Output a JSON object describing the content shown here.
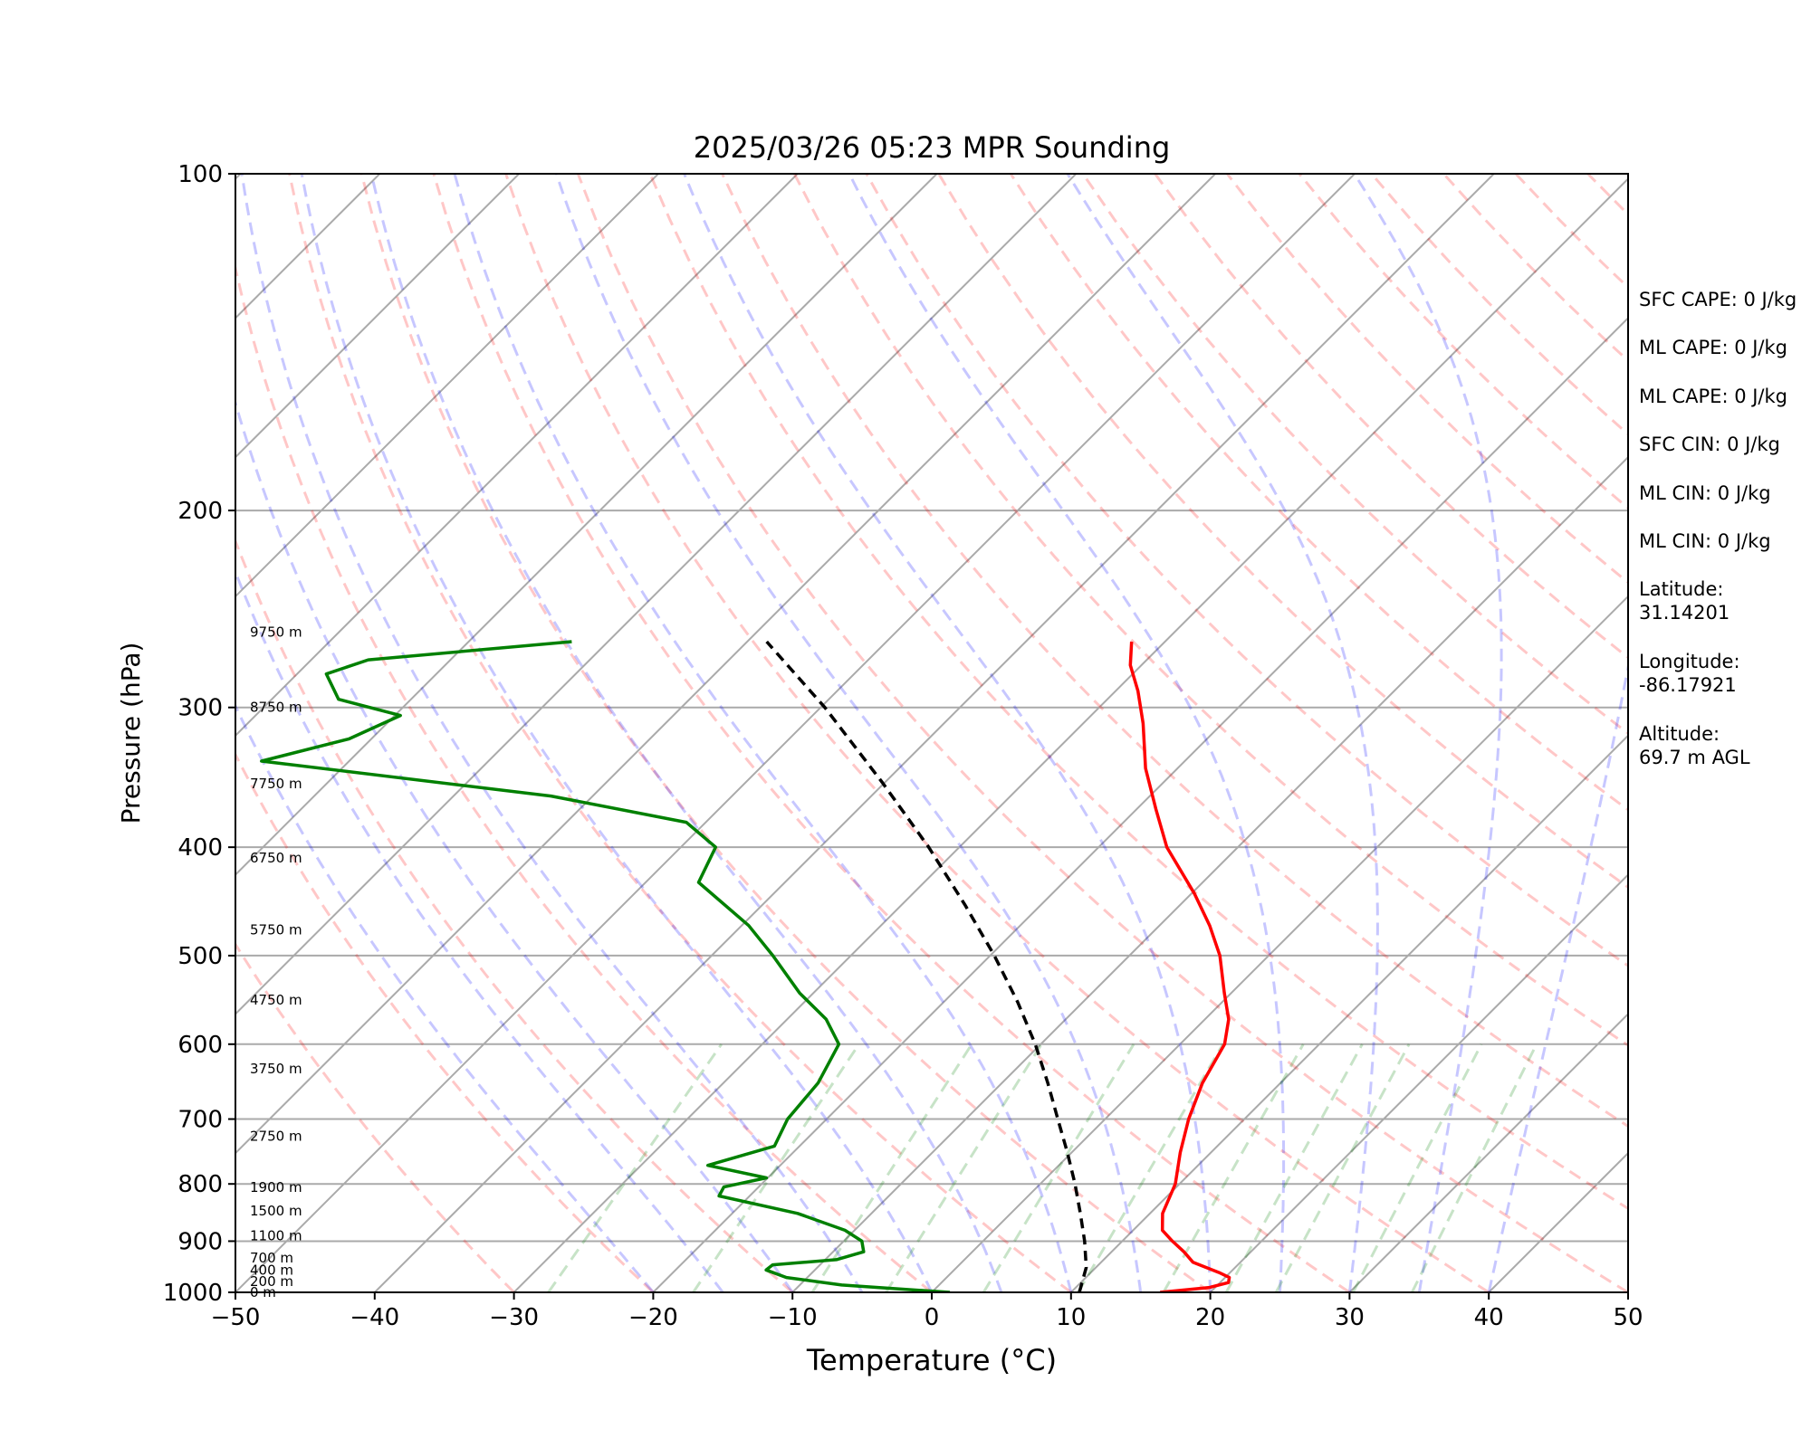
{
  "side_panel": {
    "sfc_cape": "SFC CAPE: 0 J/kg",
    "ml_cape_1": "ML CAPE: 0 J/kg",
    "ml_cape_2": "ML CAPE: 0 J/kg",
    "sfc_cin": "SFC CIN: 0 J/kg",
    "ml_cin_1": "ML CIN: 0 J/kg",
    "ml_cin_2": "ML CIN: 0 J/kg",
    "latitude_label": "Latitude:",
    "latitude_value": "31.14201",
    "longitude_label": "Longitude:",
    "longitude_value": "-86.17921",
    "altitude_label": "Altitude:",
    "altitude_value": "69.7 m AGL"
  },
  "chart_data": {
    "type": "line",
    "title": "2025/03/26 05:23 MPR Sounding",
    "xlabel": "Temperature (°C)",
    "ylabel": "Pressure (hPa)",
    "xlim": [
      -50,
      50
    ],
    "ylim": [
      1000,
      100
    ],
    "y_scale": "log",
    "x_ticks": [
      -50,
      -40,
      -30,
      -20,
      -10,
      0,
      10,
      20,
      30,
      40,
      50
    ],
    "x_tick_labels": [
      "−50",
      "−40",
      "−30",
      "−20",
      "−10",
      "0",
      "10",
      "20",
      "30",
      "40",
      "50"
    ],
    "y_ticks": [
      100,
      200,
      300,
      400,
      500,
      600,
      700,
      800,
      900,
      1000
    ],
    "y_tick_labels": [
      "100",
      "200",
      "300",
      "400",
      "500",
      "600",
      "700",
      "800",
      "900",
      "1000"
    ],
    "grid": "horizontal at pressure ticks",
    "skew": "skewed isotherms (45°)",
    "height_labels": [
      {
        "p": 1000,
        "text": "0 m"
      },
      {
        "p": 978,
        "text": "200 m"
      },
      {
        "p": 955,
        "text": "400 m"
      },
      {
        "p": 932,
        "text": "700 m"
      },
      {
        "p": 890,
        "text": "1100 m"
      },
      {
        "p": 846,
        "text": "1500 m"
      },
      {
        "p": 806,
        "text": "1900 m"
      },
      {
        "p": 725,
        "text": "2750 m"
      },
      {
        "p": 631,
        "text": "3750 m"
      },
      {
        "p": 548,
        "text": "4750 m"
      },
      {
        "p": 474,
        "text": "5750 m"
      },
      {
        "p": 409,
        "text": "6750 m"
      },
      {
        "p": 351,
        "text": "7750 m"
      },
      {
        "p": 300,
        "text": "8750 m"
      },
      {
        "p": 257,
        "text": "9750 m"
      }
    ],
    "series": [
      {
        "role": "temperature",
        "color": "#ff0000",
        "points": [
          [
            1000,
            16.4
          ],
          [
            990,
            19.6
          ],
          [
            980,
            20.6
          ],
          [
            970,
            20.3
          ],
          [
            960,
            19.2
          ],
          [
            940,
            16.6
          ],
          [
            920,
            15.2
          ],
          [
            900,
            13.6
          ],
          [
            880,
            12.1
          ],
          [
            850,
            10.9
          ],
          [
            800,
            9.7
          ],
          [
            750,
            7.8
          ],
          [
            700,
            6.0
          ],
          [
            650,
            4.4
          ],
          [
            600,
            3.2
          ],
          [
            570,
            1.7
          ],
          [
            540,
            -0.5
          ],
          [
            500,
            -3.5
          ],
          [
            470,
            -6.4
          ],
          [
            440,
            -9.8
          ],
          [
            400,
            -15.1
          ],
          [
            370,
            -18.6
          ],
          [
            340,
            -22.3
          ],
          [
            310,
            -25.7
          ],
          [
            290,
            -28.4
          ],
          [
            275,
            -30.8
          ],
          [
            262,
            -32.4
          ]
        ]
      },
      {
        "role": "dewpoint",
        "color": "#008000",
        "points": [
          [
            1000,
            1.3
          ],
          [
            985,
            -7.0
          ],
          [
            970,
            -11.5
          ],
          [
            955,
            -13.5
          ],
          [
            945,
            -13.4
          ],
          [
            935,
            -9.2
          ],
          [
            920,
            -7.8
          ],
          [
            900,
            -8.7
          ],
          [
            880,
            -10.7
          ],
          [
            850,
            -15.3
          ],
          [
            820,
            -22.2
          ],
          [
            805,
            -22.5
          ],
          [
            790,
            -20.1
          ],
          [
            770,
            -25.2
          ],
          [
            740,
            -21.8
          ],
          [
            700,
            -22.8
          ],
          [
            650,
            -23.2
          ],
          [
            600,
            -24.5
          ],
          [
            570,
            -27.2
          ],
          [
            540,
            -31.0
          ],
          [
            500,
            -35.6
          ],
          [
            470,
            -39.5
          ],
          [
            430,
            -46.2
          ],
          [
            400,
            -47.5
          ],
          [
            380,
            -51.4
          ],
          [
            360,
            -63.0
          ],
          [
            335,
            -86.3
          ],
          [
            320,
            -81.6
          ],
          [
            305,
            -79.6
          ],
          [
            295,
            -85.2
          ],
          [
            280,
            -87.9
          ],
          [
            272,
            -85.9
          ],
          [
            262,
            -72.6
          ]
        ]
      },
      {
        "role": "parcel",
        "color": "#000000",
        "dash": "dashed",
        "points": [
          [
            1000,
            10.6
          ],
          [
            950,
            9.3
          ],
          [
            900,
            7.3
          ],
          [
            850,
            5.0
          ],
          [
            800,
            2.5
          ],
          [
            750,
            -0.3
          ],
          [
            700,
            -3.4
          ],
          [
            650,
            -6.7
          ],
          [
            600,
            -10.4
          ],
          [
            550,
            -14.7
          ],
          [
            500,
            -19.7
          ],
          [
            450,
            -25.5
          ],
          [
            400,
            -32.2
          ],
          [
            350,
            -40.2
          ],
          [
            300,
            -49.7
          ],
          [
            262,
            -58.6
          ]
        ]
      }
    ],
    "reference_lines": {
      "dry_adiabats": "light red dashed",
      "moist_adiabats": "light blue dashed",
      "mixing_ratio_lines": "light green dashed (1000–600 hPa)",
      "isotherms": "gray solid"
    },
    "legend": "none"
  }
}
